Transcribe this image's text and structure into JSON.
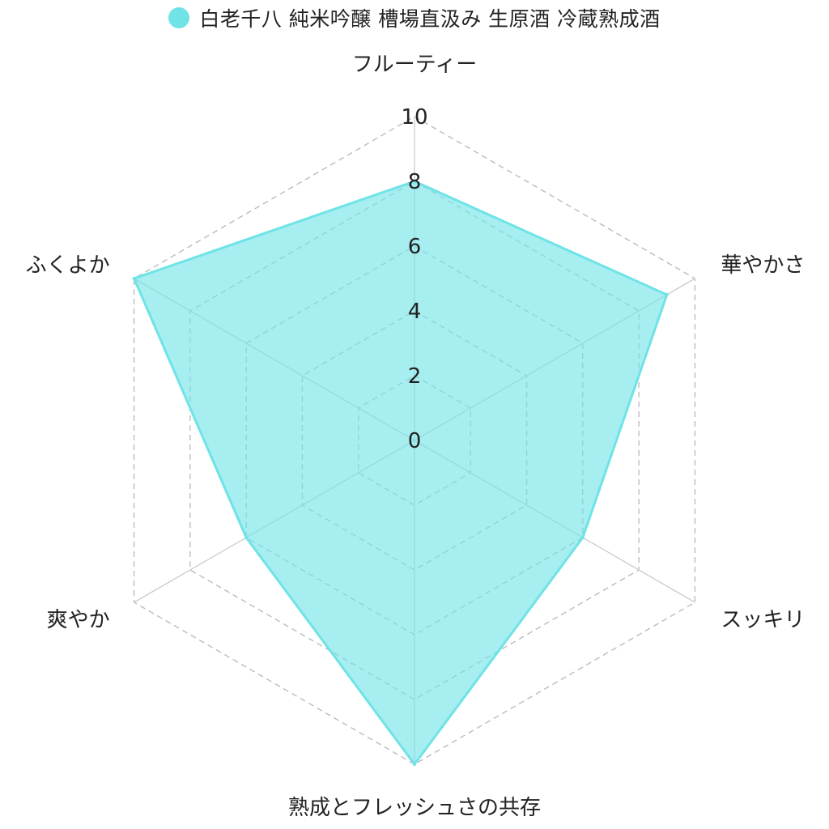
{
  "chart_data": {
    "type": "radar",
    "axes": [
      "フルーティー",
      "華やかさ",
      "スッキリ",
      "熟成とフレッシュさの共存",
      "爽やか",
      "ふくよか"
    ],
    "series": [
      {
        "name": "白老千八 純米吟醸 槽場直汲み 生原酒 冷蔵熟成酒",
        "values": [
          8,
          9,
          6,
          10,
          6,
          10
        ],
        "color": "#6fe3e6",
        "fill": "rgba(111, 227, 230, 0.62)"
      }
    ],
    "rlim": [
      0,
      10
    ],
    "ticks": [
      "0",
      "2",
      "4",
      "6",
      "8",
      "10"
    ],
    "tick_values": [
      0,
      2,
      4,
      6,
      8,
      10
    ],
    "legend_position": "top",
    "grid": true,
    "grid_color": "#bdbdbd",
    "spoke_color": "#cccccc"
  }
}
